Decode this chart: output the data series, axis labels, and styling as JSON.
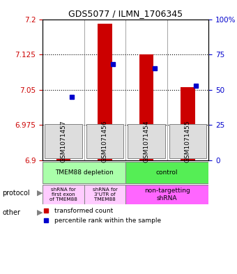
{
  "title": "GDS5077 / ILMN_1706345",
  "samples": [
    "GSM1071457",
    "GSM1071456",
    "GSM1071454",
    "GSM1071455"
  ],
  "bar_values": [
    6.975,
    7.19,
    7.125,
    7.055
  ],
  "bar_baseline": 6.9,
  "percentile_values": [
    45,
    68,
    65,
    53
  ],
  "ylim_left": [
    6.9,
    7.2
  ],
  "ylim_right": [
    0,
    100
  ],
  "yticks_left": [
    6.9,
    6.975,
    7.05,
    7.125,
    7.2
  ],
  "yticks_right": [
    0,
    25,
    50,
    75,
    100
  ],
  "ytick_labels_left": [
    "6.9",
    "6.975",
    "7.05",
    "7.125",
    "7.2"
  ],
  "ytick_labels_right": [
    "0",
    "25",
    "50",
    "75",
    "100%"
  ],
  "bar_color": "#cc0000",
  "square_color": "#0000cc",
  "bar_width": 0.35,
  "protocol_labels": [
    "TMEM88 depletion",
    "control"
  ],
  "protocol_colors": [
    "#99ff99",
    "#66ff66"
  ],
  "other_labels": [
    "shRNA for\nfirst exon\nof TMEM88",
    "shRNA for\n3'UTR of\nTMEM88",
    "non-targetting\nshRNA"
  ],
  "other_colors": [
    "#ffccff",
    "#ffccff",
    "#ff66ff"
  ],
  "legend_red": "transformed count",
  "legend_blue": "percentile rank within the sample",
  "left_label": "protocol",
  "left_label2": "other",
  "grid_color": "#000000",
  "bg_color": "#ffffff",
  "plot_bg": "#ffffff"
}
